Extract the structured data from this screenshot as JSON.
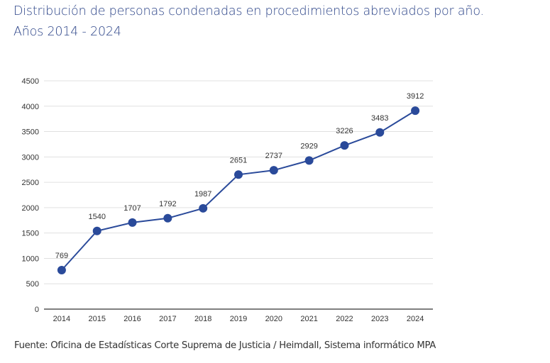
{
  "title_line1": "Distribución de personas condenadas en procedimientos abreviados por año.",
  "title_line2": "Años 2014 - 2024",
  "source": "Fuente: Oficina de Estadísticas Corte Suprema de Justicia / Heimdall, Sistema informático MPA",
  "colors": {
    "series": "#2a4a9a",
    "title": "#2d4589",
    "grid": "#e0e0e0",
    "axis": "#555555",
    "tick_text": "#333333"
  },
  "chart_data": {
    "type": "line",
    "title": "Distribución de personas condenadas en procedimientos abreviados por año. Años 2014 - 2024",
    "xlabel": "",
    "ylabel": "",
    "categories": [
      "2014",
      "2015",
      "2016",
      "2017",
      "2018",
      "2019",
      "2020",
      "2021",
      "2022",
      "2023",
      "2024"
    ],
    "series": [
      {
        "name": "Personas condenadas",
        "values": [
          769,
          1540,
          1707,
          1792,
          1987,
          2651,
          2737,
          2929,
          3226,
          3483,
          3912
        ]
      }
    ],
    "ylim": [
      0,
      4500
    ],
    "yticks": [
      0,
      500,
      1000,
      1500,
      2000,
      2500,
      3000,
      3500,
      4000,
      4500
    ],
    "grid": true,
    "legend": "none",
    "data_labels": true
  }
}
